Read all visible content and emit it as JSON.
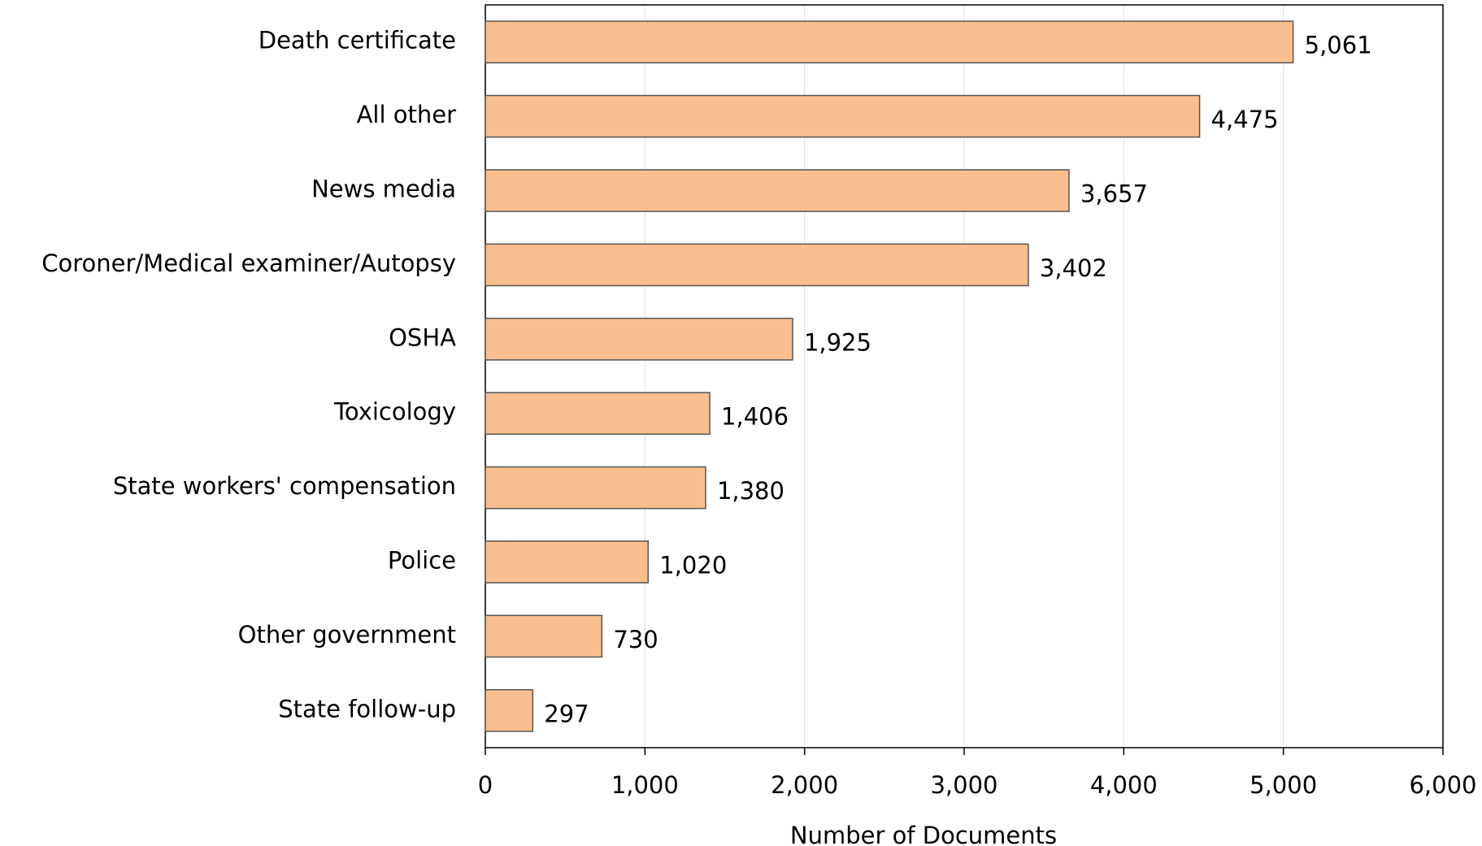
{
  "chart_data": {
    "type": "hbar",
    "x_label": "Number of Documents",
    "categories": [
      "Death certificate",
      "All other",
      "News media",
      "Coroner/Medical examiner/Autopsy",
      "OSHA",
      "Toxicology",
      "State workers' compensation",
      "Police",
      "Other government",
      "State follow-up"
    ],
    "values": [
      5061,
      4475,
      3657,
      3402,
      1925,
      1406,
      1380,
      1020,
      730,
      297
    ],
    "value_labels": [
      "5,061",
      "4,475",
      "3,657",
      "3,402",
      "1,925",
      "1,406",
      "1,380",
      "1,020",
      "730",
      "297"
    ],
    "color": "#f9bf8f",
    "xlim": [
      0,
      6000
    ],
    "xticks": [
      0,
      {
        "value": 1000,
        "label": "1,000"
      },
      {
        "value": 2000,
        "label": "2,000"
      },
      {
        "value": 3000,
        "label": "3,000"
      },
      {
        "value": 4000,
        "label": "4,000"
      },
      {
        "value": 5000,
        "label": "5,000"
      },
      {
        "value": 6000,
        "label": "6,000"
      }
    ],
    "grid": true
  }
}
